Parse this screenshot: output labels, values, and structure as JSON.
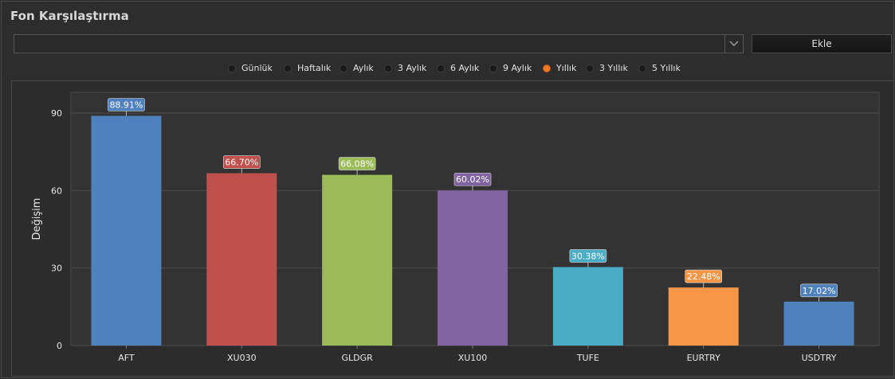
{
  "window": {
    "title": "Fon Karşılaştırma"
  },
  "selector": {
    "value": "",
    "add_label": "Ekle"
  },
  "periods": [
    {
      "label": "Günlük",
      "selected": false
    },
    {
      "label": "Haftalık",
      "selected": false
    },
    {
      "label": "Aylık",
      "selected": false
    },
    {
      "label": "3 Aylık",
      "selected": false
    },
    {
      "label": "6 Aylık",
      "selected": false
    },
    {
      "label": "9 Aylık",
      "selected": false
    },
    {
      "label": "Yıllık",
      "selected": true
    },
    {
      "label": "3 Yıllık",
      "selected": false
    },
    {
      "label": "5 Yıllık",
      "selected": false
    }
  ],
  "icons": {
    "dropdown": "chevron-down-icon"
  },
  "colors": {
    "accent": "#f07a28",
    "grid": "#4d4d4d",
    "text": "#e6e6e6"
  },
  "chart_data": {
    "type": "bar",
    "categories": [
      "AFT",
      "XU030",
      "GLDGR",
      "XU100",
      "TUFE",
      "EURTRY",
      "USDTRY"
    ],
    "values": [
      88.91,
      66.7,
      66.08,
      60.02,
      30.38,
      22.48,
      17.02
    ],
    "labels": [
      "88.91%",
      "66.70%",
      "66.08%",
      "60.02%",
      "30.38%",
      "22.48%",
      "17.02%"
    ],
    "colors": [
      "#4f81bd",
      "#c0504d",
      "#9bbb59",
      "#8064a2",
      "#4bacc6",
      "#f79646",
      "#4f81bd"
    ],
    "ylabel": "Değişim",
    "yticks": [
      0,
      30,
      60,
      90
    ],
    "ylim": [
      0,
      98
    ],
    "grid": true
  }
}
